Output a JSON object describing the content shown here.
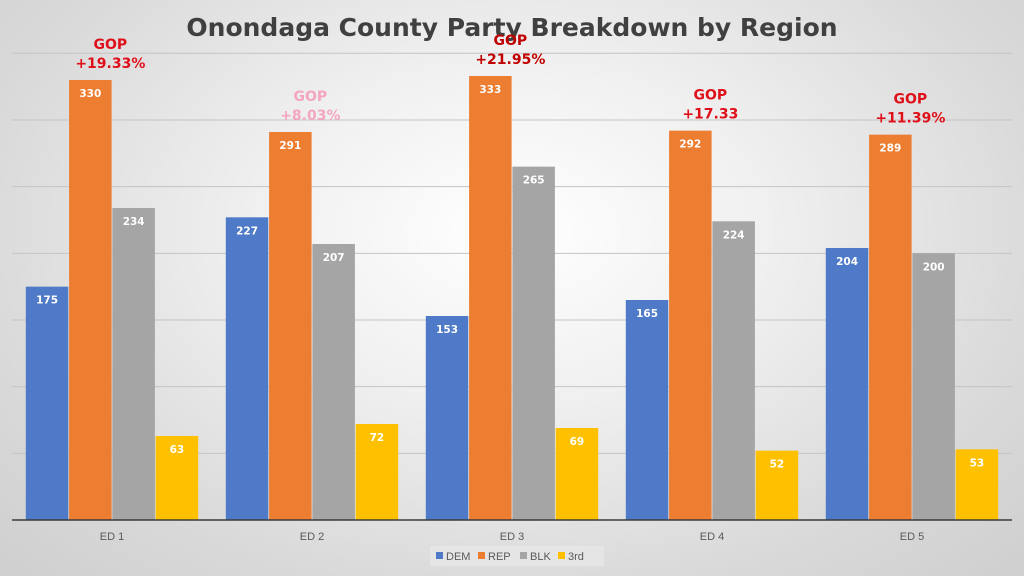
{
  "chart_data": {
    "type": "bar",
    "title": "Onondaga County Party Breakdown by Region",
    "xlabel": "",
    "ylabel": "",
    "ylim": [
      0,
      350
    ],
    "y_gridline_step": 50,
    "grid": true,
    "y_tick_labels_visible": false,
    "legend_position": "bottom",
    "categories": [
      "ED 1",
      "ED 2",
      "ED 3",
      "ED 4",
      "ED 5"
    ],
    "series": [
      {
        "name": "DEM",
        "color": "#4f7ac7",
        "values": [
          175,
          227,
          153,
          165,
          204
        ]
      },
      {
        "name": "REP",
        "color": "#ed7d31",
        "values": [
          330,
          291,
          333,
          292,
          289
        ]
      },
      {
        "name": "BLK",
        "color": "#a5a5a5",
        "values": [
          234,
          207,
          265,
          224,
          200
        ]
      },
      {
        "name": "3rd",
        "color": "#ffc000",
        "values": [
          63,
          72,
          69,
          52,
          53
        ]
      }
    ],
    "annotations": [
      {
        "category": "ED 1",
        "line1": "GOP",
        "line2": "+19.33%",
        "color": "#e0101a"
      },
      {
        "category": "ED 2",
        "line1": "GOP",
        "line2": "+8.03%",
        "color": "#f4a6c0"
      },
      {
        "category": "ED 3",
        "line1": "GOP",
        "line2": "+21.95%",
        "color": "#c00000"
      },
      {
        "category": "ED 4",
        "line1": "GOP",
        "line2": "+17.33",
        "color": "#e0101a"
      },
      {
        "category": "ED 5",
        "line1": "GOP",
        "line2": "+11.39%",
        "color": "#e0101a"
      }
    ]
  }
}
